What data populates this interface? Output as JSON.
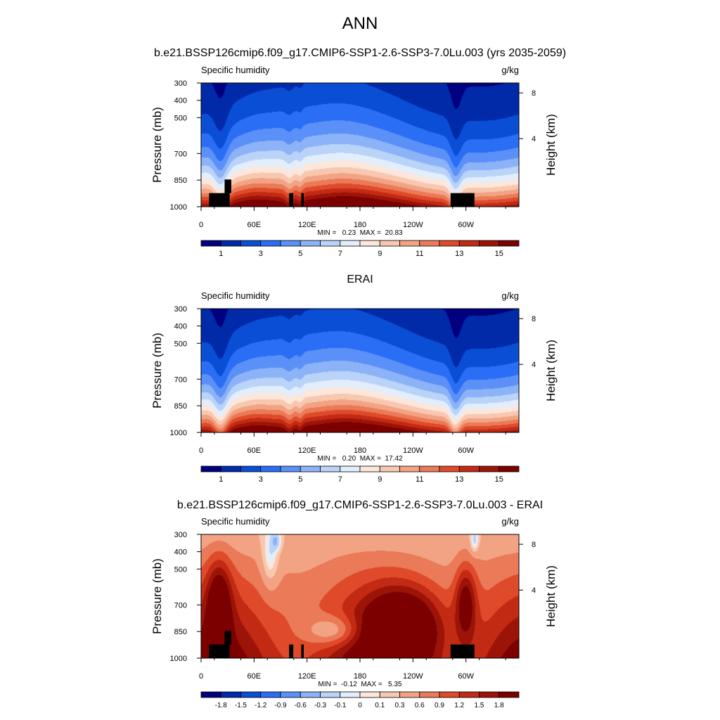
{
  "page_title": "ANN",
  "chart_data": [
    {
      "type": "heatmap",
      "title": "b.e21.BSSP126cmip6.f09_g17.CMIP6-SSP1-2.6-SSP3-7.0Lu.003 (yrs 2035-2059)",
      "left_label": "Specific humidity",
      "right_label": "g/kg",
      "ylabel": "Pressure (mb)",
      "y2label": "Height (km)",
      "pressure_ticks": [
        "300",
        "400",
        "500",
        "700",
        "850",
        "1000"
      ],
      "height_ticks": [
        "8",
        "4"
      ],
      "x_ticks": [
        "0",
        "60E",
        "120E",
        "180",
        "120W",
        "60W"
      ],
      "stats": "MIN =   0.23  MAX =  20.83",
      "colorbar_labels": [
        "1",
        "3",
        "5",
        "7",
        "9",
        "11",
        "13",
        "15"
      ],
      "colorbar_colors": [
        "#00007f",
        "#002aa8",
        "#0a4ed6",
        "#2a6ef6",
        "#5a90f7",
        "#8cb2f7",
        "#b9d3f9",
        "#e3eefc",
        "#fde6da",
        "#f8c7b0",
        "#f2a383",
        "#ea7a58",
        "#de4a2a",
        "#c22a14",
        "#9c1408",
        "#7c0000"
      ],
      "mode": "abs"
    },
    {
      "type": "heatmap",
      "title": "ERAI",
      "left_label": "Specific humidity",
      "right_label": "g/kg",
      "ylabel": "Pressure (mb)",
      "y2label": "Height (km)",
      "pressure_ticks": [
        "300",
        "400",
        "500",
        "700",
        "850",
        "1000"
      ],
      "height_ticks": [
        "8",
        "4"
      ],
      "x_ticks": [
        "0",
        "60E",
        "120E",
        "180",
        "120W",
        "60W"
      ],
      "stats": "MIN =   0.20  MAX =  17.42",
      "colorbar_labels": [
        "1",
        "3",
        "5",
        "7",
        "9",
        "11",
        "13",
        "15"
      ],
      "colorbar_colors": [
        "#00007f",
        "#002aa8",
        "#0a4ed6",
        "#2a6ef6",
        "#5a90f7",
        "#8cb2f7",
        "#b9d3f9",
        "#e3eefc",
        "#fde6da",
        "#f8c7b0",
        "#f2a383",
        "#ea7a58",
        "#de4a2a",
        "#c22a14",
        "#9c1408",
        "#7c0000"
      ],
      "mode": "abs"
    },
    {
      "type": "heatmap",
      "title": "b.e21.BSSP126cmip6.f09_g17.CMIP6-SSP1-2.6-SSP3-7.0Lu.003 - ERAI",
      "left_label": "Specific humidity",
      "right_label": "g/kg",
      "ylabel": "Pressure (mb)",
      "y2label": "Height (km)",
      "pressure_ticks": [
        "300",
        "400",
        "500",
        "700",
        "850",
        "1000"
      ],
      "height_ticks": [
        "8",
        "4"
      ],
      "x_ticks": [
        "0",
        "60E",
        "120E",
        "180",
        "120W",
        "60W"
      ],
      "stats": "MIN =  -0.12  MAX =   5.35",
      "colorbar_labels": [
        "-1.8",
        "-1.5",
        "-1.2",
        "-0.9",
        "-0.6",
        "-0.3",
        "-0.1",
        "0",
        "0.1",
        "0.3",
        "0.6",
        "0.9",
        "1.2",
        "1.5",
        "1.8"
      ],
      "colorbar_colors": [
        "#00007f",
        "#002aa8",
        "#0a4ed6",
        "#2a6ef6",
        "#5a90f7",
        "#8cb2f7",
        "#b9d3f9",
        "#e3eefc",
        "#fde6da",
        "#f8c7b0",
        "#f2a383",
        "#ea7a58",
        "#de4a2a",
        "#c22a14",
        "#9c1408",
        "#7c0000"
      ],
      "mode": "diff"
    }
  ]
}
